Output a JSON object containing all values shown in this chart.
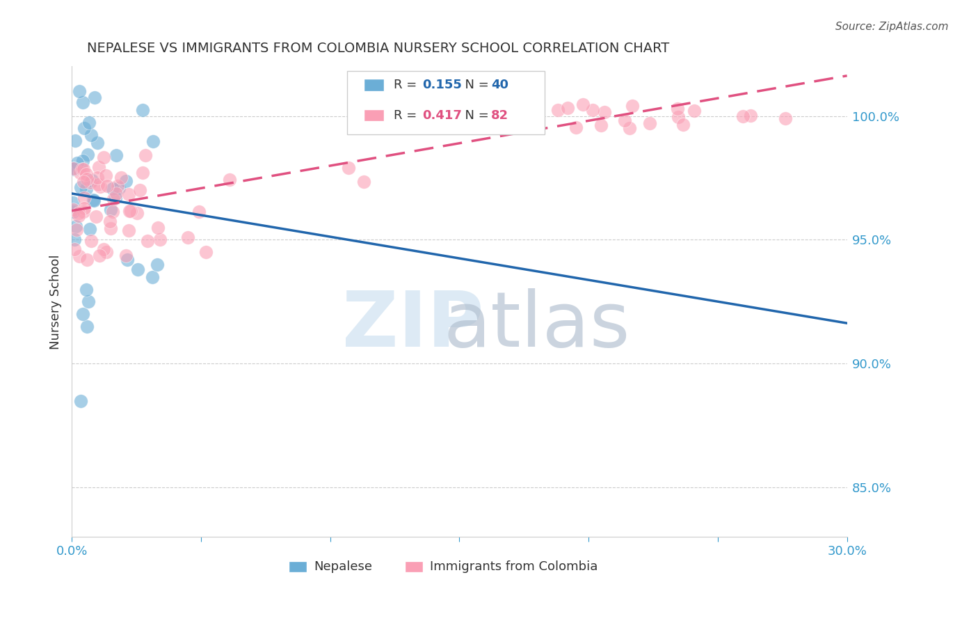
{
  "title": "NEPALESE VS IMMIGRANTS FROM COLOMBIA NURSERY SCHOOL CORRELATION CHART",
  "source": "Source: ZipAtlas.com",
  "ylabel": "Nursery School",
  "ytick_labels": [
    "85.0%",
    "90.0%",
    "95.0%",
    "100.0%"
  ],
  "ytick_values": [
    85.0,
    90.0,
    95.0,
    100.0
  ],
  "xlim": [
    0.0,
    30.0
  ],
  "ylim": [
    83.0,
    102.0
  ],
  "legend_blue_r": "0.155",
  "legend_blue_n": "40",
  "legend_pink_r": "0.417",
  "legend_pink_n": "82",
  "blue_color": "#6baed6",
  "pink_color": "#fa9fb5",
  "blue_line_color": "#2166ac",
  "pink_line_color": "#e05080",
  "background_color": "#ffffff",
  "title_color": "#333333",
  "axis_label_color": "#3399cc",
  "grid_color": "#cccccc"
}
